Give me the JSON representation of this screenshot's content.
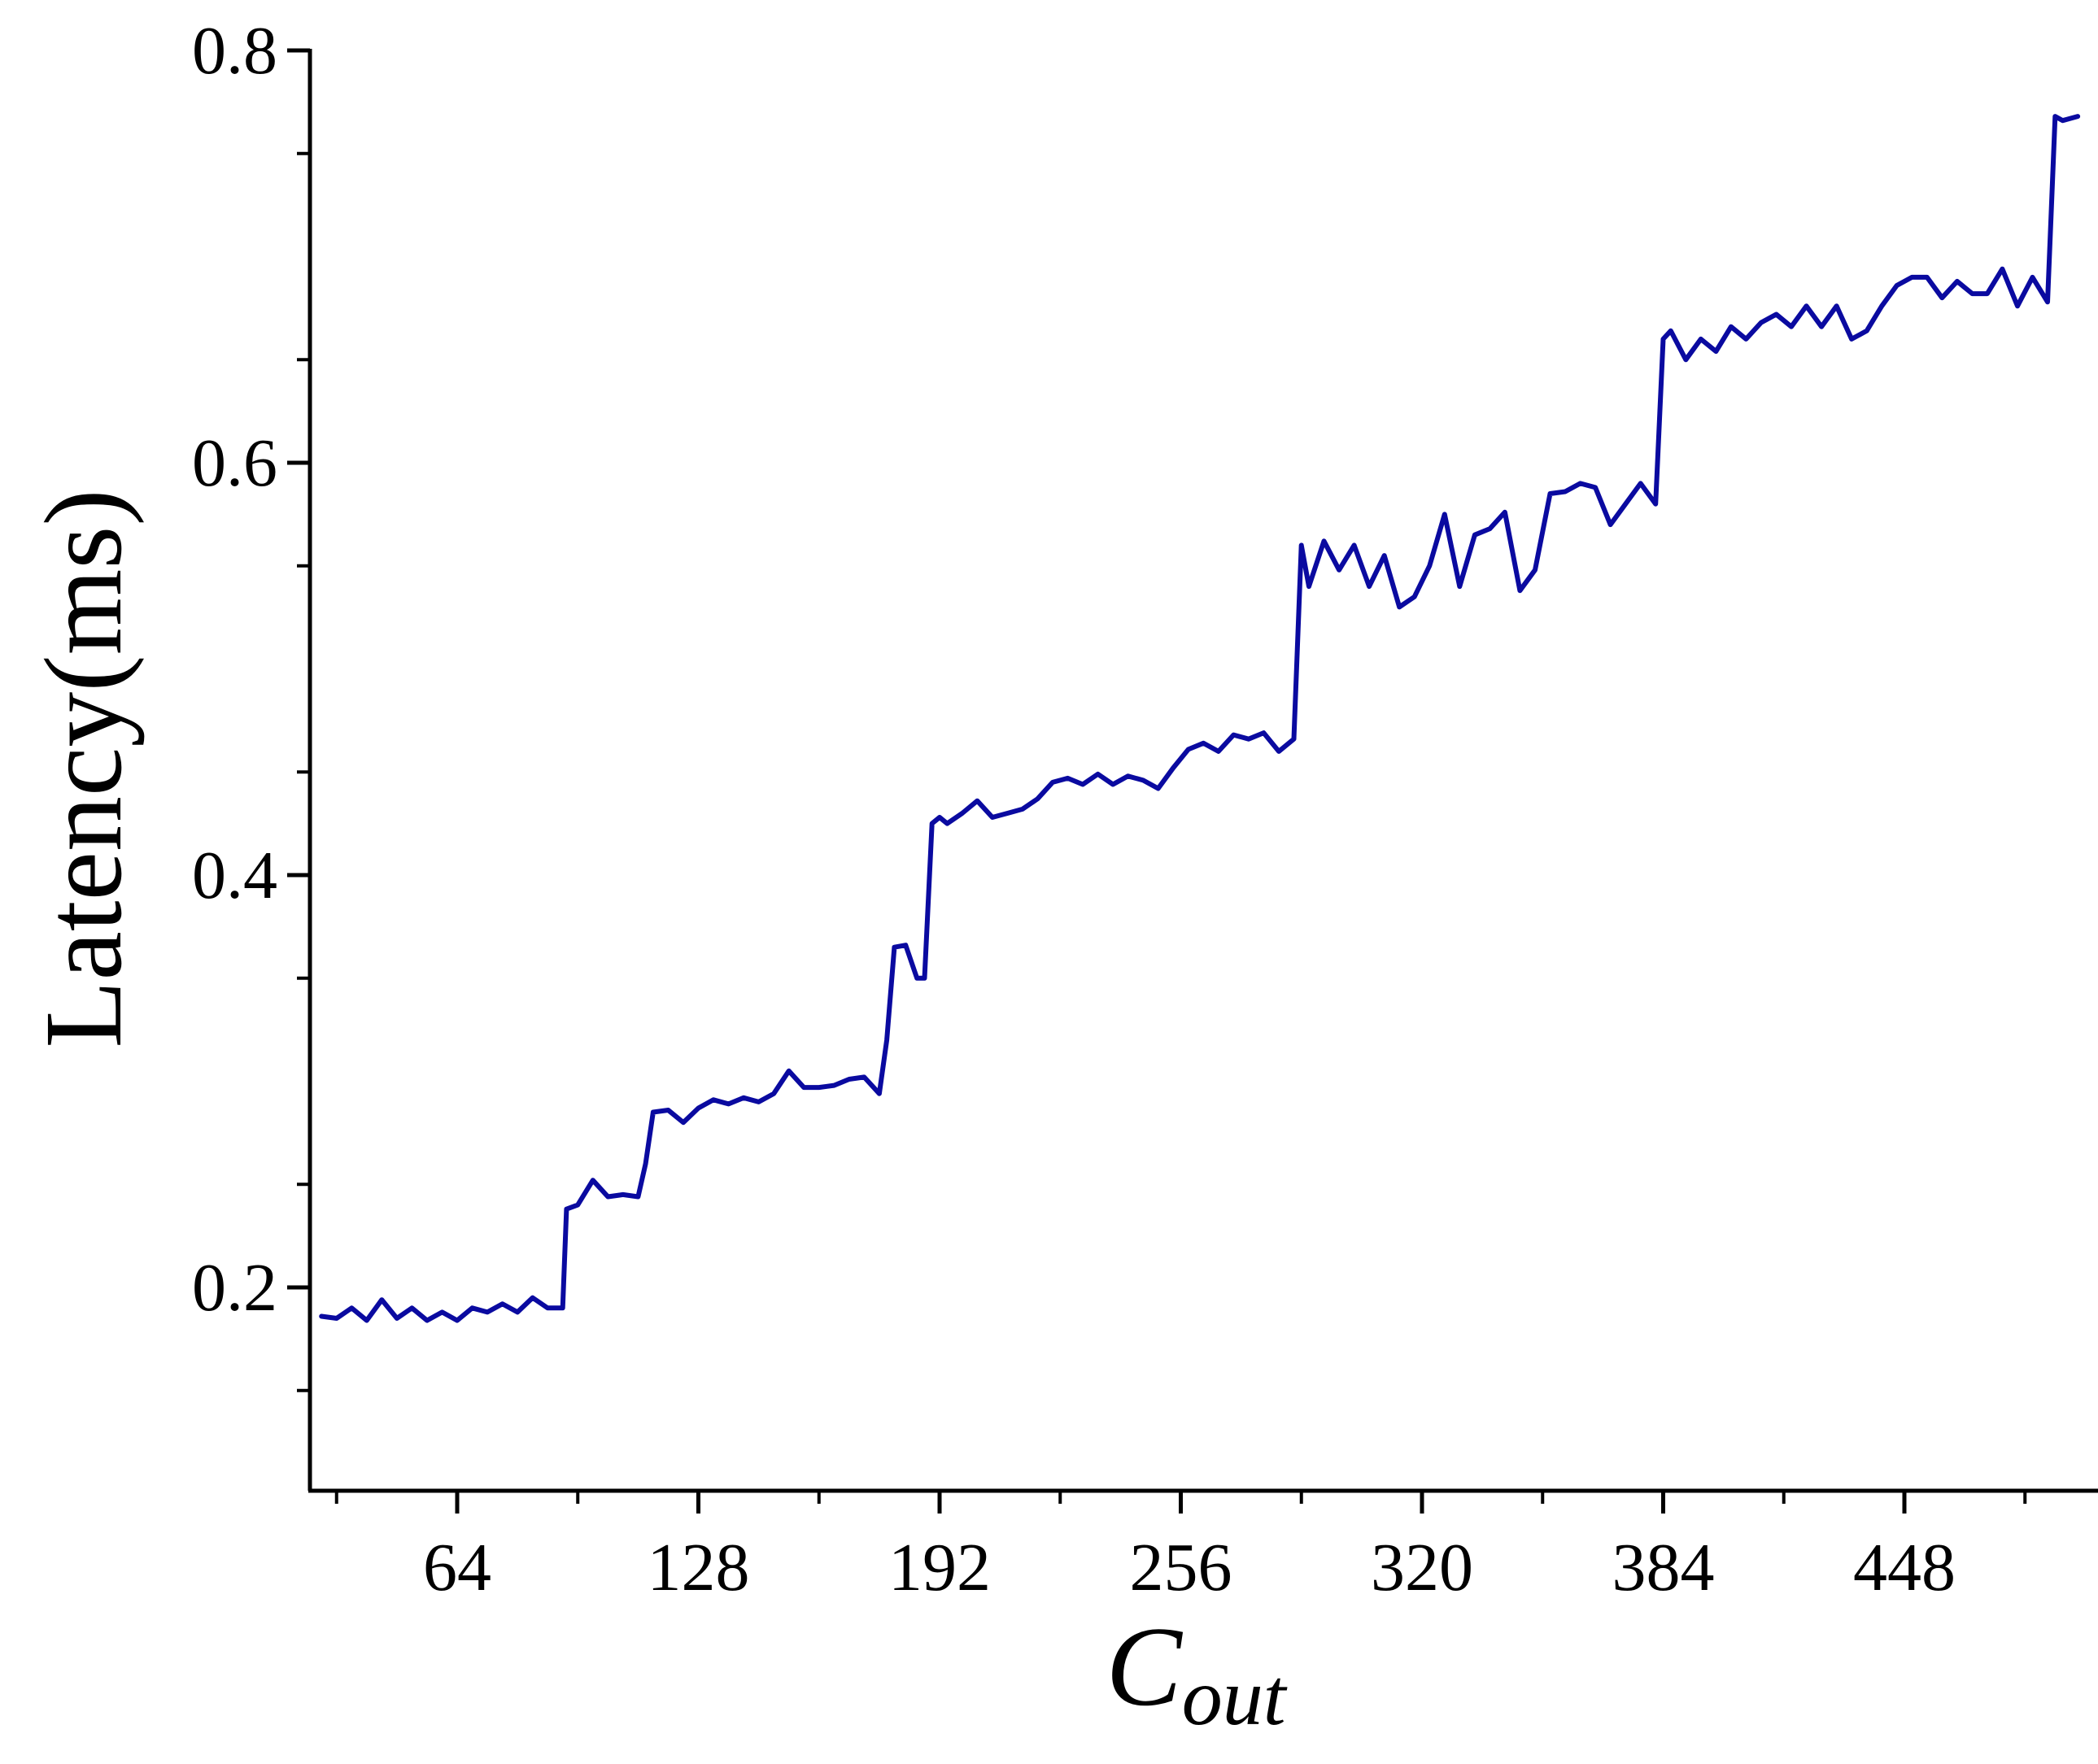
{
  "chart_data": {
    "type": "line",
    "title": "",
    "xlabel": "C",
    "xlabel_subscript": "out",
    "ylabel": "Latency(ms)",
    "xlim": [
      24,
      498
    ],
    "ylim": [
      0.1,
      0.8
    ],
    "x_ticks": [
      64,
      128,
      192,
      256,
      320,
      384,
      448
    ],
    "x_tick_labels": [
      "64",
      "128",
      "192",
      "256",
      "320",
      "384",
      "448"
    ],
    "y_ticks": [
      0.2,
      0.4,
      0.6,
      0.8
    ],
    "y_tick_labels": [
      "0.2",
      "0.4",
      "0.6",
      "0.8"
    ],
    "grid": false,
    "legend": "none",
    "colors": {
      "line": "#0a0aa0",
      "axis": "#000000"
    },
    "series": [
      {
        "x": [
          28,
          32,
          36,
          40,
          44,
          48,
          52,
          56,
          60,
          64,
          68,
          72,
          76,
          80,
          84,
          88,
          92,
          93,
          96,
          100,
          104,
          108,
          112,
          114,
          116,
          120,
          124,
          128,
          132,
          136,
          140,
          144,
          148,
          152,
          156,
          160,
          164,
          168,
          172,
          176,
          178,
          180,
          183,
          186,
          188,
          190,
          192,
          194,
          198,
          202,
          206,
          210,
          214,
          218,
          222,
          226,
          230,
          234,
          238,
          242,
          246,
          250,
          254,
          258,
          262,
          266,
          270,
          274,
          278,
          282,
          286,
          288,
          290,
          294,
          298,
          302,
          306,
          310,
          314,
          318,
          322,
          326,
          330,
          334,
          338,
          342,
          346,
          350,
          354,
          358,
          362,
          366,
          370,
          374,
          378,
          382,
          384,
          386,
          390,
          394,
          398,
          402,
          406,
          410,
          414,
          418,
          422,
          426,
          430,
          434,
          438,
          442,
          446,
          450,
          454,
          458,
          462,
          466,
          470,
          474,
          478,
          482,
          486,
          488,
          490,
          494
        ],
        "y": [
          0.186,
          0.185,
          0.19,
          0.184,
          0.194,
          0.185,
          0.19,
          0.184,
          0.188,
          0.184,
          0.19,
          0.188,
          0.192,
          0.188,
          0.195,
          0.19,
          0.19,
          0.238,
          0.24,
          0.252,
          0.244,
          0.245,
          0.244,
          0.26,
          0.285,
          0.286,
          0.28,
          0.287,
          0.291,
          0.289,
          0.292,
          0.29,
          0.294,
          0.305,
          0.297,
          0.297,
          0.298,
          0.301,
          0.302,
          0.294,
          0.32,
          0.365,
          0.366,
          0.35,
          0.35,
          0.425,
          0.428,
          0.425,
          0.43,
          0.436,
          0.428,
          0.43,
          0.432,
          0.437,
          0.445,
          0.447,
          0.444,
          0.449,
          0.444,
          0.448,
          0.446,
          0.442,
          0.452,
          0.461,
          0.464,
          0.46,
          0.468,
          0.466,
          0.469,
          0.46,
          0.466,
          0.56,
          0.54,
          0.562,
          0.548,
          0.56,
          0.54,
          0.555,
          0.53,
          0.535,
          0.55,
          0.575,
          0.54,
          0.565,
          0.568,
          0.576,
          0.538,
          0.548,
          0.585,
          0.586,
          0.59,
          0.588,
          0.57,
          0.58,
          0.59,
          0.58,
          0.66,
          0.664,
          0.65,
          0.66,
          0.654,
          0.666,
          0.66,
          0.668,
          0.672,
          0.666,
          0.676,
          0.666,
          0.676,
          0.66,
          0.664,
          0.676,
          0.686,
          0.69,
          0.69,
          0.68,
          0.688,
          0.682,
          0.682,
          0.694,
          0.676,
          0.69,
          0.678,
          0.768,
          0.766,
          0.768
        ]
      }
    ]
  }
}
